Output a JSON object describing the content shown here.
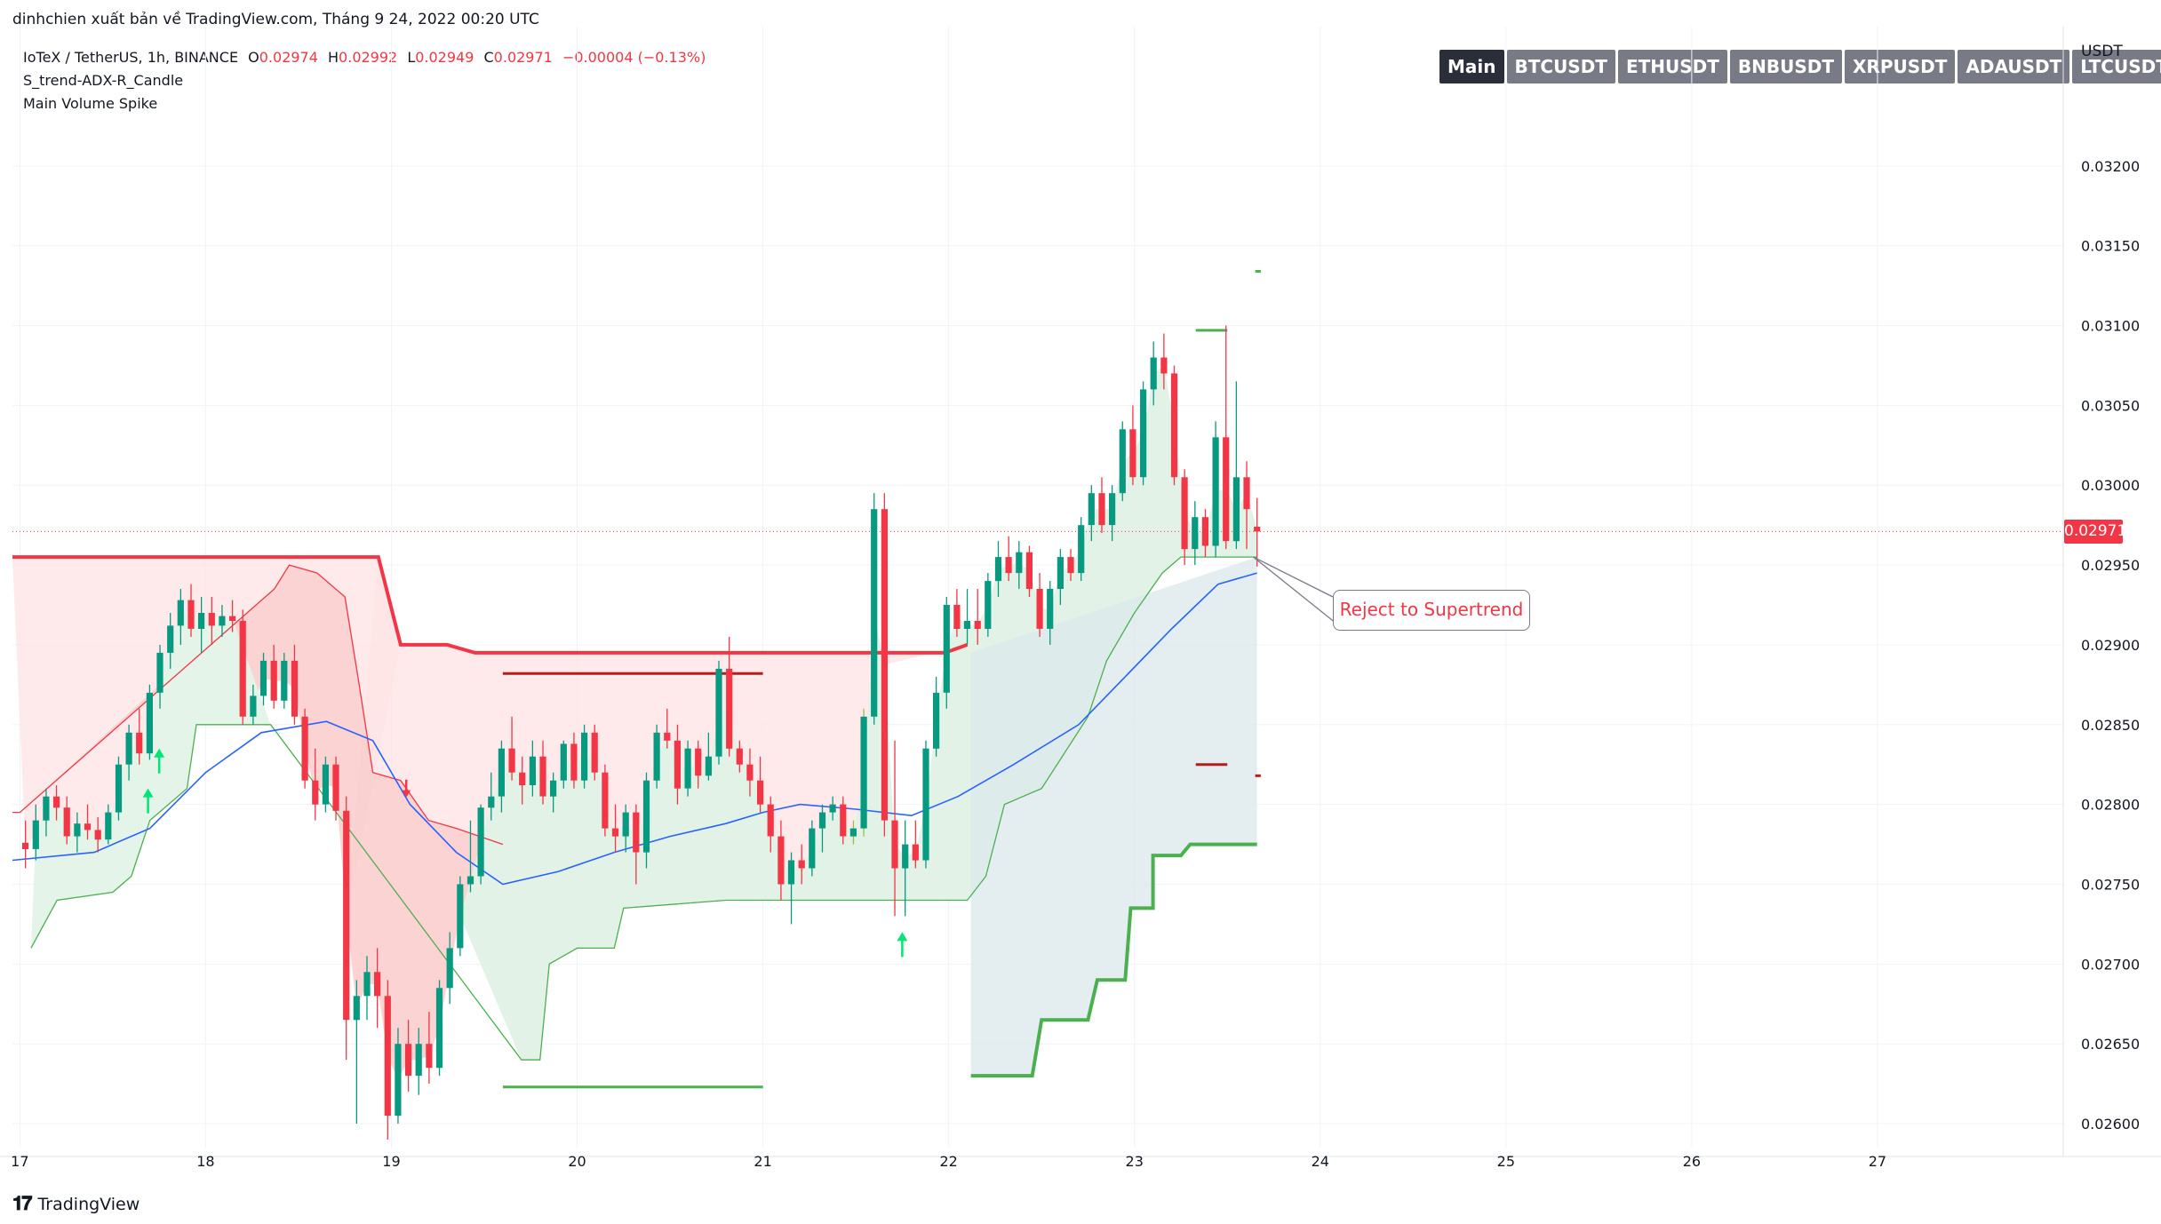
{
  "header": {
    "caption": "dinhchien xuất bản về TradingView.com, Tháng 9 24, 2022 00:20 UTC"
  },
  "legend": {
    "symbol": "IoTeX / TetherUS, 1h, BINANCE",
    "open_label": "O",
    "open": "0.02974",
    "high_label": "H",
    "high": "0.02992",
    "low_label": "L",
    "low": "0.02949",
    "close_label": "C",
    "close": "0.02971",
    "change": "−0.00004 (−0.13%)",
    "indicators": [
      "S_trend-ADX-R_Candle",
      "Main Volume Spike"
    ]
  },
  "tabs": [
    {
      "label": "Main",
      "active": true
    },
    {
      "label": "BTCUSDT",
      "active": false
    },
    {
      "label": "ETHUSDT",
      "active": false
    },
    {
      "label": "BNBUSDT",
      "active": false
    },
    {
      "label": "XRPUSDT",
      "active": false
    },
    {
      "label": "ADAUSDT",
      "active": false
    },
    {
      "label": "LTCUSDT",
      "active": false
    }
  ],
  "unit": "USDT",
  "last_price": "0.02971",
  "annotation": "Reject to Supertrend",
  "footer": {
    "brand": "TradingView"
  },
  "colors": {
    "up": "#089981",
    "down": "#f23645",
    "ma": "#2962ff",
    "st_up": "#4caf50",
    "st_down": "#f23645"
  },
  "chart_data": {
    "type": "candlestick",
    "ylim": [
      0.02585,
      0.03255
    ],
    "xlim": [
      16.96,
      28.0
    ],
    "grid": true,
    "y_ticks": [
      "0.03200",
      "0.03150",
      "0.03100",
      "0.03050",
      "0.03000",
      "0.02950",
      "0.02900",
      "0.02850",
      "0.02800",
      "0.02750",
      "0.02700",
      "0.02650",
      "0.02600"
    ],
    "y_tick_values": [
      0.032,
      0.0315,
      0.031,
      0.0305,
      0.03,
      0.0295,
      0.029,
      0.0285,
      0.028,
      0.0275,
      0.027,
      0.0265,
      0.026
    ],
    "x_ticks": [
      "17",
      "18",
      "19",
      "20",
      "21",
      "22",
      "23",
      "24",
      "25",
      "26",
      "27"
    ],
    "x_tick_values": [
      17,
      18,
      19,
      20,
      21,
      22,
      23,
      24,
      25,
      26,
      27
    ],
    "candles": [
      [
        0.02776,
        0.0279,
        0.0276,
        0.02772
      ],
      [
        0.02772,
        0.028,
        0.02765,
        0.0279
      ],
      [
        0.0279,
        0.0281,
        0.0278,
        0.02805
      ],
      [
        0.02805,
        0.02812,
        0.0279,
        0.02798
      ],
      [
        0.02798,
        0.02805,
        0.02775,
        0.0278
      ],
      [
        0.0278,
        0.02795,
        0.0277,
        0.02788
      ],
      [
        0.02788,
        0.028,
        0.02778,
        0.02784
      ],
      [
        0.02784,
        0.02792,
        0.0277,
        0.02778
      ],
      [
        0.02778,
        0.028,
        0.02775,
        0.02795
      ],
      [
        0.02795,
        0.0283,
        0.0279,
        0.02825
      ],
      [
        0.02825,
        0.0285,
        0.02815,
        0.02845
      ],
      [
        0.02845,
        0.0286,
        0.02825,
        0.02832
      ],
      [
        0.02832,
        0.02875,
        0.02828,
        0.0287
      ],
      [
        0.0287,
        0.029,
        0.0286,
        0.02895
      ],
      [
        0.02895,
        0.0292,
        0.02885,
        0.02912
      ],
      [
        0.02912,
        0.02935,
        0.029,
        0.02928
      ],
      [
        0.02928,
        0.02938,
        0.02905,
        0.0291
      ],
      [
        0.0291,
        0.0293,
        0.02895,
        0.0292
      ],
      [
        0.0292,
        0.0293,
        0.029,
        0.02912
      ],
      [
        0.02912,
        0.02925,
        0.02905,
        0.02918
      ],
      [
        0.02918,
        0.02928,
        0.02908,
        0.02915
      ],
      [
        0.02915,
        0.02922,
        0.0285,
        0.02855
      ],
      [
        0.02855,
        0.02875,
        0.0285,
        0.02868
      ],
      [
        0.02868,
        0.02895,
        0.02862,
        0.0289
      ],
      [
        0.0289,
        0.029,
        0.0286,
        0.02865
      ],
      [
        0.02865,
        0.02895,
        0.0286,
        0.0289
      ],
      [
        0.0289,
        0.029,
        0.0285,
        0.02855
      ],
      [
        0.02855,
        0.0286,
        0.0281,
        0.02815
      ],
      [
        0.02815,
        0.02835,
        0.0279,
        0.028
      ],
      [
        0.028,
        0.0283,
        0.02795,
        0.02825
      ],
      [
        0.02825,
        0.0283,
        0.0279,
        0.02796
      ],
      [
        0.02796,
        0.02805,
        0.0264,
        0.02665
      ],
      [
        0.02665,
        0.0269,
        0.026,
        0.0268
      ],
      [
        0.0268,
        0.02705,
        0.02665,
        0.02695
      ],
      [
        0.02695,
        0.0271,
        0.0266,
        0.0268
      ],
      [
        0.0268,
        0.0269,
        0.0259,
        0.02605
      ],
      [
        0.02605,
        0.0266,
        0.026,
        0.0265
      ],
      [
        0.0265,
        0.02665,
        0.0262,
        0.0263
      ],
      [
        0.0263,
        0.0266,
        0.02618,
        0.0265
      ],
      [
        0.0265,
        0.0267,
        0.02625,
        0.02635
      ],
      [
        0.02635,
        0.0269,
        0.0263,
        0.02685
      ],
      [
        0.02685,
        0.0272,
        0.02675,
        0.0271
      ],
      [
        0.0271,
        0.02755,
        0.02705,
        0.0275
      ],
      [
        0.0275,
        0.0279,
        0.02745,
        0.02755
      ],
      [
        0.02755,
        0.028,
        0.0275,
        0.02798
      ],
      [
        0.02798,
        0.0282,
        0.0279,
        0.02805
      ],
      [
        0.02805,
        0.0284,
        0.02795,
        0.02835
      ],
      [
        0.02835,
        0.02855,
        0.02815,
        0.0282
      ],
      [
        0.0282,
        0.0283,
        0.028,
        0.02812
      ],
      [
        0.02812,
        0.0284,
        0.02805,
        0.0283
      ],
      [
        0.0283,
        0.0284,
        0.028,
        0.02805
      ],
      [
        0.02805,
        0.0282,
        0.02795,
        0.02815
      ],
      [
        0.02815,
        0.0284,
        0.0281,
        0.02838
      ],
      [
        0.02838,
        0.02845,
        0.0281,
        0.02815
      ],
      [
        0.02815,
        0.0285,
        0.0281,
        0.02845
      ],
      [
        0.02845,
        0.0285,
        0.02815,
        0.0282
      ],
      [
        0.0282,
        0.02825,
        0.0278,
        0.02785
      ],
      [
        0.02785,
        0.028,
        0.0277,
        0.0278
      ],
      [
        0.0278,
        0.028,
        0.0277,
        0.02795
      ],
      [
        0.02795,
        0.028,
        0.0275,
        0.0277
      ],
      [
        0.0277,
        0.0282,
        0.0276,
        0.02815
      ],
      [
        0.02815,
        0.0285,
        0.0281,
        0.02845
      ],
      [
        0.02845,
        0.0286,
        0.02835,
        0.0284
      ],
      [
        0.0284,
        0.0285,
        0.028,
        0.0281
      ],
      [
        0.0281,
        0.0284,
        0.02805,
        0.02835
      ],
      [
        0.02835,
        0.0284,
        0.0281,
        0.02818
      ],
      [
        0.02818,
        0.02845,
        0.02815,
        0.0283
      ],
      [
        0.0283,
        0.0289,
        0.02825,
        0.02885
      ],
      [
        0.02885,
        0.02905,
        0.0283,
        0.02835
      ],
      [
        0.02835,
        0.0284,
        0.0282,
        0.02825
      ],
      [
        0.02825,
        0.02835,
        0.02805,
        0.02815
      ],
      [
        0.02815,
        0.0283,
        0.02795,
        0.028
      ],
      [
        0.028,
        0.02805,
        0.0277,
        0.0278
      ],
      [
        0.0278,
        0.0279,
        0.0274,
        0.0275
      ],
      [
        0.0275,
        0.0277,
        0.02725,
        0.02765
      ],
      [
        0.02765,
        0.02775,
        0.0275,
        0.0276
      ],
      [
        0.0276,
        0.0279,
        0.02755,
        0.02785
      ],
      [
        0.02785,
        0.028,
        0.0277,
        0.02795
      ],
      [
        0.02795,
        0.02805,
        0.0279,
        0.028
      ],
      [
        0.028,
        0.02805,
        0.02775,
        0.0278
      ],
      [
        0.0278,
        0.0279,
        0.02775,
        0.02785
      ],
      [
        0.02785,
        0.0286,
        0.0278,
        0.02855
      ],
      [
        0.02855,
        0.02995,
        0.0285,
        0.02985
      ],
      [
        0.02985,
        0.02995,
        0.0278,
        0.0279
      ],
      [
        0.0279,
        0.0284,
        0.0273,
        0.0276
      ],
      [
        0.0276,
        0.0279,
        0.0273,
        0.02775
      ],
      [
        0.02775,
        0.0279,
        0.0276,
        0.02765
      ],
      [
        0.02765,
        0.0284,
        0.0276,
        0.02835
      ],
      [
        0.02835,
        0.0288,
        0.0283,
        0.0287
      ],
      [
        0.0287,
        0.0293,
        0.0286,
        0.02925
      ],
      [
        0.02925,
        0.02935,
        0.02905,
        0.0291
      ],
      [
        0.0291,
        0.02935,
        0.029,
        0.02915
      ],
      [
        0.02915,
        0.02935,
        0.029,
        0.0291
      ],
      [
        0.0291,
        0.02945,
        0.02905,
        0.0294
      ],
      [
        0.0294,
        0.02965,
        0.0293,
        0.02955
      ],
      [
        0.02955,
        0.02968,
        0.0294,
        0.02945
      ],
      [
        0.02945,
        0.02965,
        0.02935,
        0.02958
      ],
      [
        0.02958,
        0.02962,
        0.0293,
        0.02935
      ],
      [
        0.02935,
        0.02945,
        0.02905,
        0.0291
      ],
      [
        0.0291,
        0.0294,
        0.029,
        0.02935
      ],
      [
        0.02935,
        0.0296,
        0.02925,
        0.02955
      ],
      [
        0.02955,
        0.0296,
        0.0294,
        0.02945
      ],
      [
        0.02945,
        0.0298,
        0.0294,
        0.02975
      ],
      [
        0.02975,
        0.03,
        0.02965,
        0.02995
      ],
      [
        0.02995,
        0.03005,
        0.0297,
        0.02975
      ],
      [
        0.02975,
        0.03,
        0.02965,
        0.02995
      ],
      [
        0.02995,
        0.0304,
        0.0299,
        0.03035
      ],
      [
        0.03035,
        0.0305,
        0.03,
        0.03005
      ],
      [
        0.03005,
        0.03065,
        0.03,
        0.0306
      ],
      [
        0.0306,
        0.0309,
        0.0305,
        0.0308
      ],
      [
        0.0308,
        0.03095,
        0.0306,
        0.0307
      ],
      [
        0.0307,
        0.03075,
        0.03,
        0.03005
      ],
      [
        0.03005,
        0.0301,
        0.0295,
        0.0296
      ],
      [
        0.0296,
        0.0299,
        0.0295,
        0.0298
      ],
      [
        0.0298,
        0.02985,
        0.02955,
        0.02962
      ],
      [
        0.02962,
        0.0304,
        0.02955,
        0.0303
      ],
      [
        0.0303,
        0.031,
        0.0296,
        0.02965
      ],
      [
        0.02965,
        0.03065,
        0.0296,
        0.03005
      ],
      [
        0.03005,
        0.03015,
        0.0296,
        0.02985
      ],
      [
        0.02974,
        0.02992,
        0.02949,
        0.02971
      ]
    ],
    "volume_spike_candles": [
      80,
      81
    ],
    "moving_average": [
      [
        16.96,
        0.02765
      ],
      [
        17.4,
        0.0277
      ],
      [
        17.7,
        0.02785
      ],
      [
        18.0,
        0.0282
      ],
      [
        18.3,
        0.02845
      ],
      [
        18.65,
        0.02852
      ],
      [
        18.9,
        0.0284
      ],
      [
        19.1,
        0.028
      ],
      [
        19.35,
        0.0277
      ],
      [
        19.6,
        0.0275
      ],
      [
        19.9,
        0.02758
      ],
      [
        20.2,
        0.0277
      ],
      [
        20.5,
        0.0278
      ],
      [
        20.8,
        0.02788
      ],
      [
        21.0,
        0.02795
      ],
      [
        21.2,
        0.028
      ],
      [
        21.5,
        0.02797
      ],
      [
        21.8,
        0.02793
      ],
      [
        22.05,
        0.02805
      ],
      [
        22.35,
        0.02825
      ],
      [
        22.7,
        0.0285
      ],
      [
        22.95,
        0.0288
      ],
      [
        23.2,
        0.0291
      ],
      [
        23.45,
        0.02938
      ],
      [
        23.66,
        0.02945
      ]
    ],
    "supertrend_down_fast": [
      [
        16.96,
        0.02795
      ],
      [
        17.0,
        0.02795
      ],
      [
        18.37,
        0.02935
      ],
      [
        18.45,
        0.0295
      ],
      [
        18.6,
        0.02945
      ],
      [
        18.75,
        0.0293
      ],
      [
        18.82,
        0.0288
      ],
      [
        18.9,
        0.0282
      ],
      [
        19.05,
        0.02815
      ],
      [
        19.2,
        0.0279
      ],
      [
        19.35,
        0.02785
      ],
      [
        19.6,
        0.02775
      ]
    ],
    "supertrend_up_fast": [
      [
        17.06,
        0.0271
      ],
      [
        17.2,
        0.0274
      ],
      [
        17.5,
        0.02745
      ],
      [
        17.6,
        0.02755
      ],
      [
        17.7,
        0.0279
      ],
      [
        17.9,
        0.0281
      ],
      [
        17.95,
        0.0285
      ],
      [
        18.35,
        0.0285
      ],
      [
        19.7,
        0.0264
      ],
      [
        19.8,
        0.0264
      ],
      [
        19.85,
        0.027
      ],
      [
        20.0,
        0.0271
      ],
      [
        20.2,
        0.0271
      ],
      [
        20.25,
        0.02735
      ],
      [
        20.8,
        0.0274
      ],
      [
        22.1,
        0.0274
      ],
      [
        22.2,
        0.02755
      ],
      [
        22.3,
        0.028
      ],
      [
        22.5,
        0.0281
      ],
      [
        22.75,
        0.02855
      ],
      [
        22.85,
        0.0289
      ],
      [
        23.0,
        0.0292
      ],
      [
        23.15,
        0.02945
      ],
      [
        23.25,
        0.02955
      ],
      [
        23.66,
        0.02955
      ]
    ],
    "supertrend_down_slow": [
      [
        16.96,
        0.02955
      ],
      [
        18.93,
        0.02955
      ],
      [
        19.05,
        0.029
      ],
      [
        19.3,
        0.029
      ],
      [
        19.45,
        0.02895
      ],
      [
        21.98,
        0.02895
      ],
      [
        22.1,
        0.029
      ]
    ],
    "supertrend_up_slow": [
      [
        22.12,
        0.0263
      ],
      [
        22.45,
        0.0263
      ],
      [
        22.5,
        0.02665
      ],
      [
        22.75,
        0.02665
      ],
      [
        22.8,
        0.0269
      ],
      [
        22.95,
        0.0269
      ],
      [
        22.98,
        0.02735
      ],
      [
        23.1,
        0.02735
      ],
      [
        23.1,
        0.02768
      ],
      [
        23.25,
        0.02768
      ],
      [
        23.3,
        0.02775
      ],
      [
        23.66,
        0.02775
      ]
    ],
    "levels": [
      {
        "y": 0.02882,
        "x0": 19.6,
        "x1": 21.0,
        "color": "#b71c1c"
      },
      {
        "y": 0.02623,
        "x0": 19.6,
        "x1": 21.0,
        "color": "#4caf50"
      },
      {
        "y": 0.03097,
        "x0": 23.33,
        "x1": 23.5,
        "color": "#4caf50"
      },
      {
        "y": 0.02825,
        "x0": 23.33,
        "x1": 23.5,
        "color": "#b71c1c"
      },
      {
        "y": 0.03134,
        "x0": 23.65,
        "x1": 23.68,
        "color": "#4caf50"
      },
      {
        "y": 0.02818,
        "x0": 23.65,
        "x1": 23.68,
        "color": "#b71c1c"
      }
    ],
    "signal_arrows": [
      {
        "x": 17.69,
        "y": 0.028,
        "dir": "up"
      },
      {
        "x": 17.75,
        "y": 0.02825,
        "dir": "up"
      },
      {
        "x": 19.08,
        "y": 0.0281,
        "dir": "down"
      },
      {
        "x": 21.75,
        "y": 0.0271,
        "dir": "up"
      }
    ],
    "callout_anchor": [
      23.64,
      0.02955
    ]
  }
}
